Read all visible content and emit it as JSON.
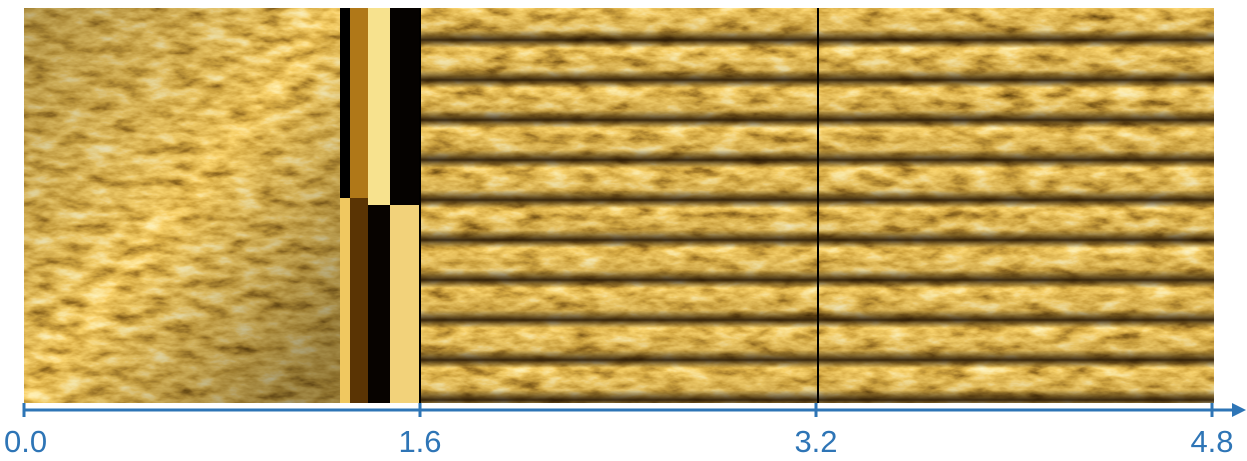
{
  "axis": {
    "xlim": [
      0,
      4.8
    ],
    "xticks": [
      {
        "value": 0,
        "label": "0.0"
      },
      {
        "value": 1.6,
        "label": "1.6"
      },
      {
        "value": 3.2,
        "label": "3.2"
      },
      {
        "value": 4.8,
        "label": "4.8"
      }
    ]
  }
}
